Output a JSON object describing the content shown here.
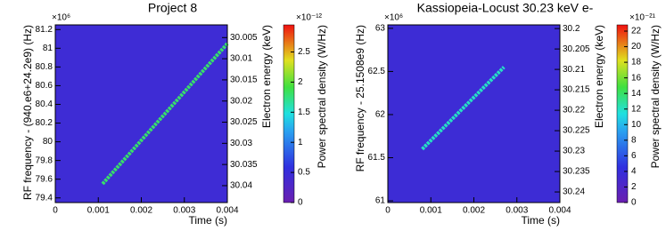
{
  "chart_data": [
    {
      "type": "spectrogram",
      "title": "Project 8",
      "xlabel": "Time (s)",
      "ylabel": "RF frequency - (940.e6+24.2e9) (Hz)",
      "y_exponent": "×10⁶",
      "y2label": "Electron energy (keV)",
      "colorbar_label": "Power spectral density (W/Hz)",
      "colorbar_exponent": "×10⁻¹²",
      "xlim": [
        0,
        0.004
      ],
      "xticks": [
        0,
        0.001,
        0.002,
        0.003,
        0.004
      ],
      "ylim": [
        79.35,
        81.25
      ],
      "yticks": [
        79.4,
        79.6,
        79.8,
        80,
        80.2,
        80.4,
        80.6,
        80.8,
        81,
        81.2
      ],
      "y2lim": [
        30.044,
        30.002
      ],
      "y2ticks": [
        30.005,
        30.01,
        30.015,
        30.02,
        30.025,
        30.03,
        30.035,
        30.04
      ],
      "zlim": [
        0,
        2.95
      ],
      "zticks": [
        0,
        0.5,
        1,
        1.5,
        2,
        2.5
      ],
      "background_level": 0.45,
      "track": {
        "x": [
          0.0011,
          0.004
        ],
        "y": [
          79.55,
          81.05
        ],
        "level": 1.8
      }
    },
    {
      "type": "spectrogram",
      "title": "Kassiopeia-Locust 30.23 keV e-",
      "xlabel": "Time (s)",
      "ylabel": "RF frequency - 25.1508e9 (Hz)",
      "y_exponent": "×10⁶",
      "y2label": "Electron energy (keV)",
      "colorbar_label": "Power spectral density (W/Hz)",
      "colorbar_exponent": "×10⁻²¹",
      "xlim": [
        0,
        0.004
      ],
      "xticks": [
        0,
        0.001,
        0.002,
        0.003,
        0.004
      ],
      "ylim": [
        60.98,
        63.04
      ],
      "yticks": [
        61,
        61.5,
        62,
        62.5,
        63
      ],
      "y2lim": [
        30.2426,
        30.1991
      ],
      "y2ticks": [
        30.2,
        30.205,
        30.21,
        30.215,
        30.22,
        30.225,
        30.23,
        30.235,
        30.24
      ],
      "zlim": [
        0,
        22.8
      ],
      "zticks": [
        0,
        2,
        4,
        6,
        8,
        10,
        12,
        14,
        16,
        18,
        20,
        22
      ],
      "background_level": 3.5,
      "track": {
        "x": [
          0.0008,
          0.0027
        ],
        "y": [
          61.6,
          62.55
        ],
        "level": 12
      }
    }
  ]
}
